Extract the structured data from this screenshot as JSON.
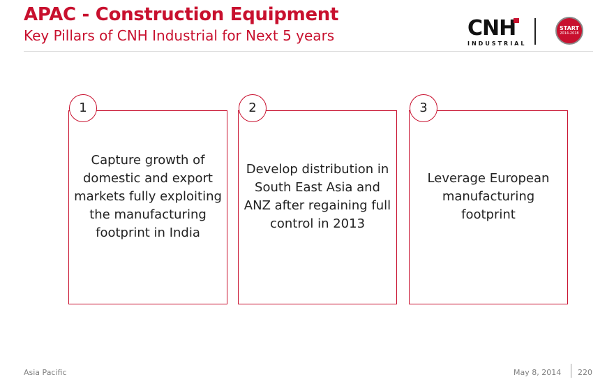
{
  "header": {
    "title": "APAC - Construction Equipment",
    "subtitle": "Key Pillars of CNH Industrial for Next 5 years"
  },
  "logo": {
    "wordmark": "CNH",
    "sub": "INDUSTRIAL",
    "badge_line1": "START",
    "badge_line2": "2014-2018"
  },
  "pillars": [
    {
      "number": "1",
      "text": "Capture growth of domestic and export markets fully exploiting the manufacturing footprint in India"
    },
    {
      "number": "2",
      "text": "Develop distribution in South East Asia and ANZ  after regaining full control in 2013"
    },
    {
      "number": "3",
      "text": "Leverage European manufacturing footprint"
    }
  ],
  "footer": {
    "region": "Asia Pacific",
    "date": "May 8, 2014",
    "page": "220"
  },
  "colors": {
    "accent": "#c8102e",
    "text": "#222222",
    "muted": "#7f7f7f"
  }
}
